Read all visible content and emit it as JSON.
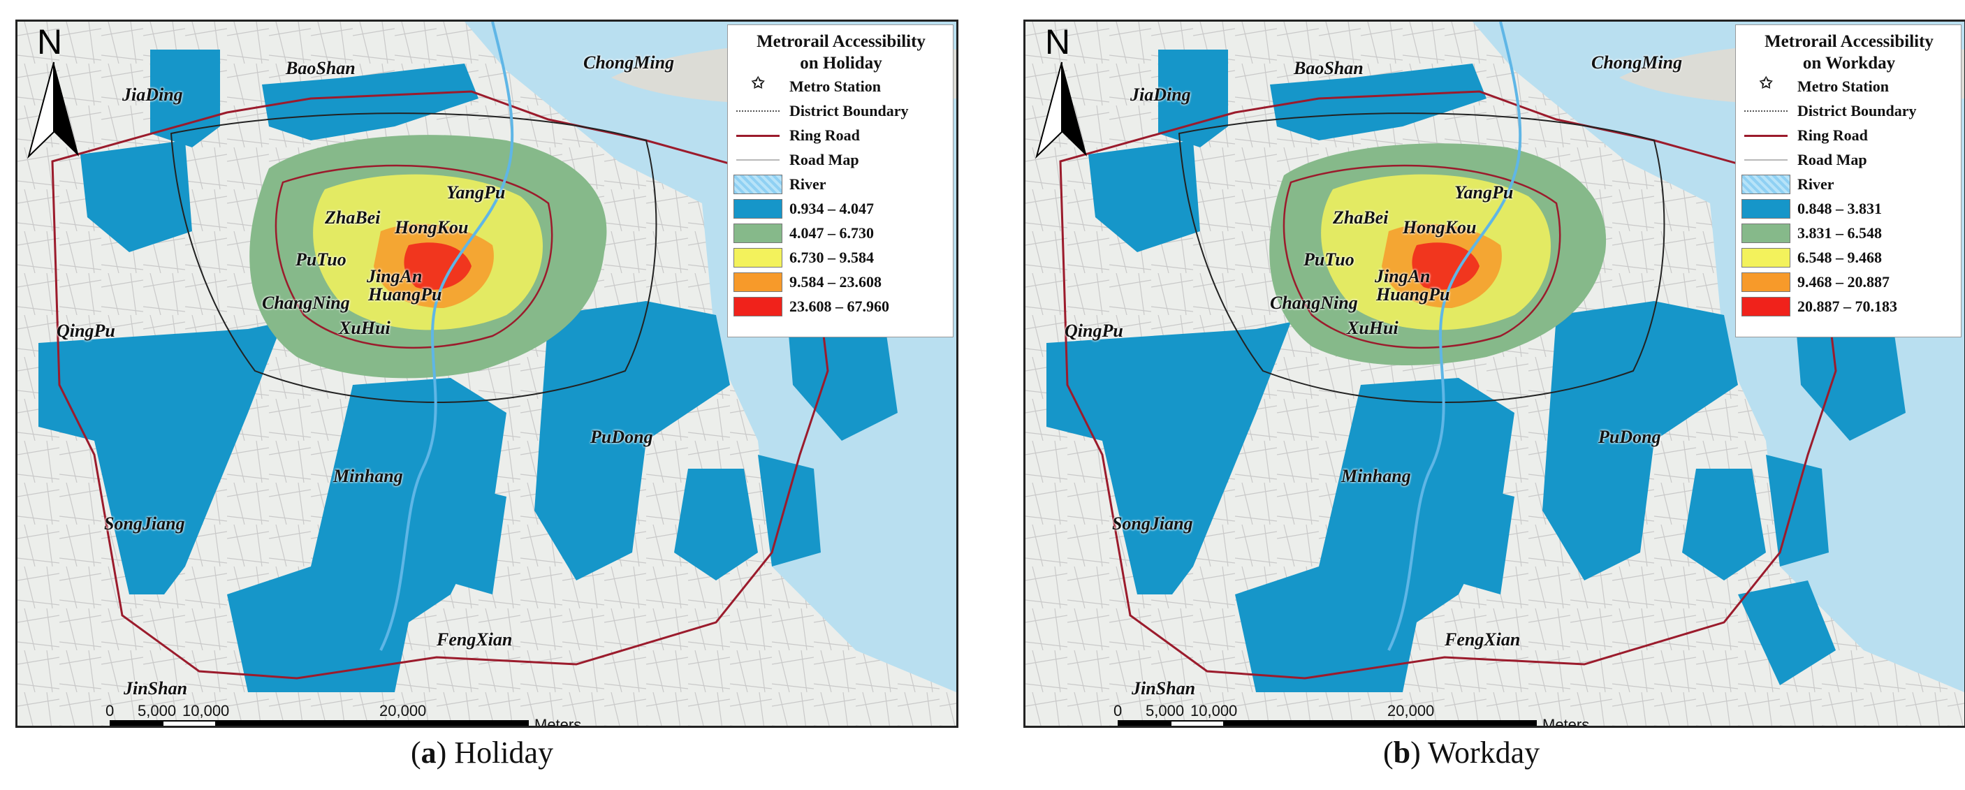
{
  "panels": [
    {
      "id": "a",
      "legend": {
        "title": "Metrorail Accessibility on Holiday",
        "title_line1": "Metrorail Accessibility",
        "title_line2": "on Holiday",
        "items": [
          {
            "label": "Metro Station",
            "symbol": "star"
          },
          {
            "label": "District Boundary",
            "symbol": "dotted-line"
          },
          {
            "label": "Ring Road",
            "symbol": "red-line"
          },
          {
            "label": "Road Map",
            "symbol": "gray-line"
          },
          {
            "label": "River",
            "symbol": "river-pattern"
          }
        ],
        "classes": [
          {
            "label": "0.934 – 4.047",
            "color": "#1696c9"
          },
          {
            "label": "4.047 – 6.730",
            "color": "#86b98a"
          },
          {
            "label": "6.730 – 9.584",
            "color": "#f3f25c"
          },
          {
            "label": "9.584 – 23.608",
            "color": "#f79a2a"
          },
          {
            "label": "23.608 – 67.960",
            "color": "#f0221b"
          }
        ]
      },
      "caption": {
        "letter": "a",
        "text": "Holiday"
      }
    },
    {
      "id": "b",
      "legend": {
        "title": "Metrorail Accessibility on Workday",
        "title_line1": "Metrorail Accessibility",
        "title_line2": "on Workday",
        "items": [
          {
            "label": "Metro Station",
            "symbol": "star"
          },
          {
            "label": "District Boundary",
            "symbol": "dotted-line"
          },
          {
            "label": "Ring Road",
            "symbol": "red-line"
          },
          {
            "label": "Road Map",
            "symbol": "gray-line"
          },
          {
            "label": "River",
            "symbol": "river-pattern"
          }
        ],
        "classes": [
          {
            "label": "0.848 – 3.831",
            "color": "#1696c9"
          },
          {
            "label": "3.831 – 6.548",
            "color": "#86b98a"
          },
          {
            "label": "6.548 – 9.468",
            "color": "#f3f25c"
          },
          {
            "label": "9.468 – 20.887",
            "color": "#f79a2a"
          },
          {
            "label": "20.887 – 70.183",
            "color": "#f0221b"
          }
        ]
      },
      "caption": {
        "letter": "b",
        "text": "Workday"
      }
    }
  ],
  "districts": [
    "ChongMing",
    "BaoShan",
    "JiaDing",
    "YangPu",
    "ZhaBei",
    "HongKou",
    "PuTuo",
    "JingAn",
    "ChangNing",
    "HuangPu",
    "XuHui",
    "QingPu",
    "PuDong",
    "Minhang",
    "SongJiang",
    "FengXian",
    "JinShan"
  ],
  "north_label": "N",
  "scale": {
    "ticks": [
      "0",
      "5,000",
      "10,000",
      "20,000"
    ],
    "unit": "Meters"
  },
  "colors": {
    "blue": "#1696c9",
    "green": "#86b98a",
    "yellow": "#f3f25c",
    "orange": "#f79a2a",
    "red": "#f0221b",
    "ring_road": "#9b1b2c",
    "sea": "#b9dff0",
    "land": "#ebecea"
  }
}
